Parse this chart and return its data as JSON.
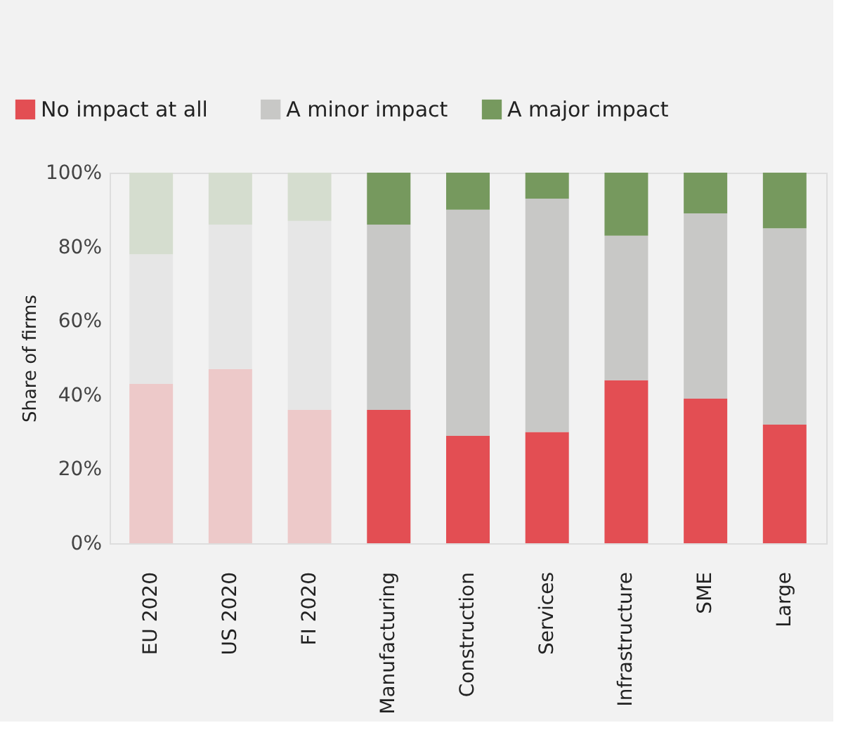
{
  "chart_data": {
    "type": "bar",
    "stacked": true,
    "ylabel": "Share of firms",
    "legend": "top left",
    "grid": false,
    "categories": [
      "EU 2020",
      "US 2020",
      "FI 2020",
      "Manufacturing",
      "Construction",
      "Services",
      "Infrastructure",
      "SME",
      "Large"
    ],
    "series": [
      {
        "name": "No impact at all",
        "color": "#e34e53",
        "colors": [
          "#edc9c9",
          "#edc9c9",
          "#edc9c9",
          "#e34e53",
          "#e34e53",
          "#e34e53",
          "#e34e53",
          "#e34e53",
          "#e34e53"
        ],
        "values": [
          43,
          47,
          36,
          36,
          29,
          30,
          44,
          39,
          32
        ]
      },
      {
        "name": "A minor impact",
        "color": "#c8c8c6",
        "colors": [
          "#e6e6e6",
          "#e6e6e6",
          "#e6e6e6",
          "#c8c8c6",
          "#c8c8c6",
          "#c8c8c6",
          "#c8c8c6",
          "#c8c8c6",
          "#c8c8c6"
        ],
        "values": [
          35,
          39,
          51,
          50,
          61,
          63,
          39,
          50,
          53
        ]
      },
      {
        "name": "A major impact",
        "color": "#76995e",
        "colors": [
          "#d5ddcf",
          "#d5ddcf",
          "#d5ddcf",
          "#76995e",
          "#76995e",
          "#76995e",
          "#76995e",
          "#76995e",
          "#76995e"
        ],
        "values": [
          22,
          14,
          13,
          14,
          10,
          7,
          17,
          11,
          15
        ]
      }
    ],
    "ylim": [
      0,
      100
    ],
    "yticks": [
      {
        "value": 0,
        "label": "0%"
      },
      {
        "value": 20,
        "label": "20%"
      },
      {
        "value": 40,
        "label": "40%"
      },
      {
        "value": 60,
        "label": "60%"
      },
      {
        "value": 80,
        "label": "80%"
      },
      {
        "value": 100,
        "label": "100%"
      }
    ]
  }
}
